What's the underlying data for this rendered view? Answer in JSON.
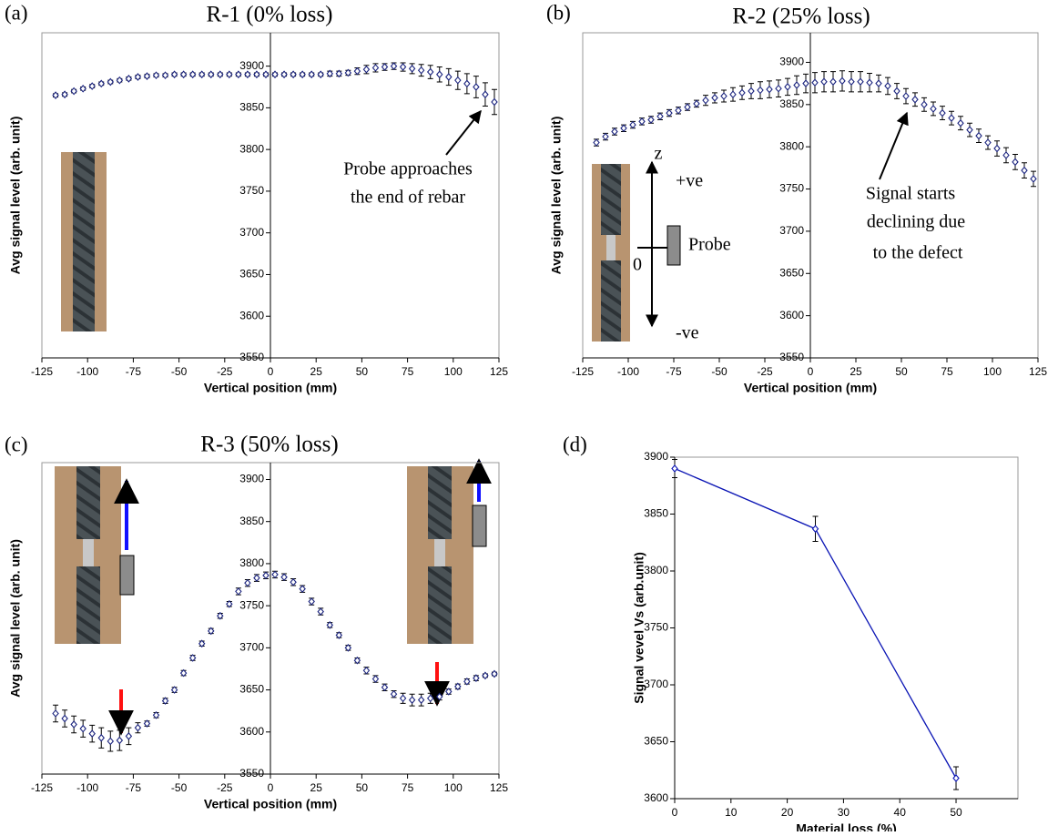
{
  "chart_data": [
    {
      "type": "scatter",
      "panel": "(a)",
      "title": "R-1 (0% loss)",
      "x_label": "Vertical position (mm)",
      "y_label": "Avg signal level (arb. unit)",
      "color": "#1a237e",
      "x": [
        -117.5,
        -112.5,
        -107.5,
        -102.5,
        -97.5,
        -92.5,
        -87.5,
        -82.5,
        -77.5,
        -72.5,
        -67.5,
        -62.5,
        -57.5,
        -52.5,
        -47.5,
        -42.5,
        -37.5,
        -32.5,
        -27.5,
        -22.5,
        -17.5,
        -12.5,
        -7.5,
        -2.5,
        2.5,
        7.5,
        12.5,
        17.5,
        22.5,
        27.5,
        32.5,
        37.5,
        42.5,
        47.5,
        52.5,
        57.5,
        62.5,
        67.5,
        72.5,
        77.5,
        82.5,
        87.5,
        92.5,
        97.5,
        102.5,
        107.5,
        112.5,
        117.5,
        122.5
      ],
      "values": [
        3865,
        3866,
        3870,
        3873,
        3876,
        3879,
        3881,
        3883,
        3885,
        3887,
        3888,
        3889,
        3889,
        3890,
        3890,
        3890,
        3890,
        3890,
        3890,
        3890,
        3890,
        3890,
        3890,
        3890,
        3890,
        3890,
        3890,
        3890,
        3890,
        3890,
        3891,
        3891,
        3892,
        3894,
        3896,
        3898,
        3899,
        3900,
        3899,
        3897,
        3895,
        3893,
        3890,
        3887,
        3883,
        3879,
        3875,
        3866,
        3857
      ],
      "errors": [
        2,
        2,
        2,
        2,
        2,
        2,
        2,
        2,
        2,
        2,
        2,
        2,
        2,
        2,
        2,
        2,
        2,
        2,
        2,
        2,
        2,
        2,
        2,
        2,
        2,
        2,
        2,
        2,
        2,
        2,
        3,
        3,
        3,
        4,
        5,
        5,
        4,
        4,
        5,
        6,
        7,
        8,
        9,
        10,
        11,
        12,
        13,
        14,
        15
      ],
      "xlim": [
        -125,
        125
      ],
      "ylim": [
        3550,
        3940
      ],
      "xticks": [
        -125,
        -100,
        -75,
        -50,
        -25,
        0,
        25,
        50,
        75,
        100,
        125
      ],
      "yticks": [
        3550,
        3600,
        3650,
        3700,
        3750,
        3800,
        3850,
        3900
      ],
      "annotations": [
        "Probe approaches",
        "the end of rebar"
      ]
    },
    {
      "type": "scatter",
      "panel": "(b)",
      "title": "R-2 (25% loss)",
      "x_label": "Vertical position (mm)",
      "y_label": "Avg signal level (arb. unit)",
      "color": "#1a237e",
      "x": [
        -117.5,
        -112.5,
        -107.5,
        -102.5,
        -97.5,
        -92.5,
        -87.5,
        -82.5,
        -77.5,
        -72.5,
        -67.5,
        -62.5,
        -57.5,
        -52.5,
        -47.5,
        -42.5,
        -37.5,
        -32.5,
        -27.5,
        -22.5,
        -17.5,
        -12.5,
        -7.5,
        -2.5,
        2.5,
        7.5,
        12.5,
        17.5,
        22.5,
        27.5,
        32.5,
        37.5,
        42.5,
        47.5,
        52.5,
        57.5,
        62.5,
        67.5,
        72.5,
        77.5,
        82.5,
        87.5,
        92.5,
        97.5,
        102.5,
        107.5,
        112.5,
        117.5,
        122.5
      ],
      "values": [
        3805,
        3812,
        3818,
        3822,
        3826,
        3830,
        3832,
        3836,
        3840,
        3843,
        3847,
        3851,
        3855,
        3858,
        3860,
        3862,
        3864,
        3866,
        3867,
        3868,
        3869,
        3871,
        3873,
        3875,
        3876,
        3877,
        3877,
        3878,
        3877,
        3877,
        3876,
        3875,
        3872,
        3866,
        3860,
        3856,
        3850,
        3845,
        3840,
        3834,
        3828,
        3820,
        3813,
        3805,
        3798,
        3790,
        3782,
        3772,
        3762
      ],
      "errors": [
        4,
        4,
        4,
        4,
        4,
        4,
        4,
        4,
        4,
        4,
        4,
        4,
        6,
        6,
        7,
        8,
        8,
        9,
        10,
        10,
        10,
        10,
        11,
        11,
        12,
        12,
        12,
        12,
        12,
        12,
        11,
        10,
        10,
        9,
        9,
        8,
        8,
        8,
        8,
        8,
        8,
        8,
        8,
        8,
        9,
        9,
        9,
        9,
        9
      ],
      "xlim": [
        -125,
        125
      ],
      "ylim": [
        3550,
        3935
      ],
      "xticks": [
        -125,
        -100,
        -75,
        -50,
        -25,
        0,
        25,
        50,
        75,
        100,
        125
      ],
      "yticks": [
        3550,
        3600,
        3650,
        3700,
        3750,
        3800,
        3850,
        3900
      ],
      "annotations": [
        "Signal starts",
        "declining due",
        "to the defect",
        "z",
        "+ve",
        "Probe",
        "0",
        "-ve"
      ]
    },
    {
      "type": "scatter",
      "panel": "(c)",
      "title": "R-3 (50% loss)",
      "x_label": "Vertical position (mm)",
      "y_label": "Avg signal level (arb. unit)",
      "color": "#1a237e",
      "x": [
        -117.5,
        -112.5,
        -107.5,
        -102.5,
        -97.5,
        -92.5,
        -87.5,
        -82.5,
        -77.5,
        -72.5,
        -67.5,
        -62.5,
        -57.5,
        -52.5,
        -47.5,
        -42.5,
        -37.5,
        -32.5,
        -27.5,
        -22.5,
        -17.5,
        -12.5,
        -7.5,
        -2.5,
        2.5,
        7.5,
        12.5,
        17.5,
        22.5,
        27.5,
        32.5,
        37.5,
        42.5,
        47.5,
        52.5,
        57.5,
        62.5,
        67.5,
        72.5,
        77.5,
        82.5,
        87.5,
        92.5,
        97.5,
        102.5,
        107.5,
        112.5,
        117.5,
        122.5
      ],
      "values": [
        3622,
        3616,
        3609,
        3604,
        3598,
        3593,
        3589,
        3590,
        3595,
        3605,
        3610,
        3620,
        3637,
        3650,
        3670,
        3688,
        3705,
        3720,
        3738,
        3752,
        3767,
        3777,
        3783,
        3786,
        3787,
        3784,
        3778,
        3770,
        3755,
        3743,
        3727,
        3715,
        3700,
        3685,
        3673,
        3663,
        3653,
        3645,
        3640,
        3638,
        3638,
        3640,
        3642,
        3648,
        3654,
        3660,
        3664,
        3667,
        3669
      ],
      "errors": [
        10,
        10,
        10,
        10,
        10,
        12,
        12,
        12,
        10,
        6,
        3,
        3,
        3,
        3,
        3,
        3,
        3,
        3,
        3,
        3,
        4,
        4,
        4,
        4,
        4,
        4,
        4,
        4,
        4,
        4,
        3,
        3,
        3,
        3,
        4,
        4,
        4,
        4,
        6,
        7,
        7,
        6,
        4,
        3,
        3,
        3,
        3,
        2,
        2
      ],
      "xlim": [
        -125,
        125
      ],
      "ylim": [
        3550,
        3920
      ],
      "xticks": [
        -125,
        -100,
        -75,
        -50,
        -25,
        0,
        25,
        50,
        75,
        100,
        125
      ],
      "yticks": [
        3550,
        3600,
        3650,
        3700,
        3750,
        3800,
        3850,
        3900
      ]
    },
    {
      "type": "line",
      "panel": "(d)",
      "x_label": "Material loss (%)",
      "y_label": "Signal vevel Vs (arb.unit)",
      "color": "#0a14b4",
      "x": [
        0,
        25,
        50
      ],
      "values": [
        3890,
        3837,
        3618
      ],
      "errors": [
        8,
        11,
        10
      ],
      "xlim": [
        0,
        61
      ],
      "ylim": [
        3600,
        3900
      ],
      "xticks": [
        0,
        10,
        20,
        30,
        40,
        50
      ],
      "yticks": [
        3600,
        3650,
        3700,
        3750,
        3800,
        3850,
        3900
      ]
    }
  ]
}
